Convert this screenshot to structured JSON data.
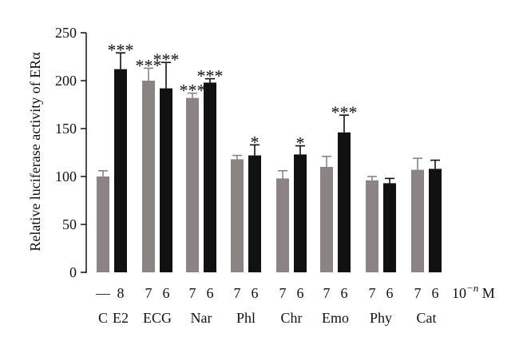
{
  "chart_data": {
    "type": "bar",
    "ylabel": "Relative luciferase activity of ERα",
    "ylim": [
      0,
      250
    ],
    "yticks": [
      0,
      50,
      100,
      150,
      200,
      250
    ],
    "unit_label": "10",
    "unit_exponent": "−n",
    "unit_suffix": " M",
    "colors": {
      "gray": "#8c8484",
      "black": "#111111"
    },
    "groups": [
      {
        "label": "C",
        "bars": [
          {
            "conc": "—",
            "value": 100,
            "err": 6,
            "color": "gray",
            "sig": ""
          }
        ]
      },
      {
        "label": "E2",
        "bars": [
          {
            "conc": "8",
            "value": 212,
            "err": 17,
            "color": "black",
            "sig": "***"
          }
        ]
      },
      {
        "label": "ECG",
        "bars": [
          {
            "conc": "7",
            "value": 200,
            "err": 13,
            "color": "gray",
            "sig": "***"
          },
          {
            "conc": "6",
            "value": 192,
            "err": 27,
            "color": "black",
            "sig": "***"
          }
        ]
      },
      {
        "label": "Nar",
        "bars": [
          {
            "conc": "7",
            "value": 182,
            "err": 5,
            "color": "gray",
            "sig": "***"
          },
          {
            "conc": "6",
            "value": 198,
            "err": 4,
            "color": "black",
            "sig": "***"
          }
        ]
      },
      {
        "label": "Phl",
        "bars": [
          {
            "conc": "7",
            "value": 118,
            "err": 4,
            "color": "gray",
            "sig": ""
          },
          {
            "conc": "6",
            "value": 122,
            "err": 11,
            "color": "black",
            "sig": "*"
          }
        ]
      },
      {
        "label": "Chr",
        "bars": [
          {
            "conc": "7",
            "value": 98,
            "err": 8,
            "color": "gray",
            "sig": ""
          },
          {
            "conc": "6",
            "value": 123,
            "err": 9,
            "color": "black",
            "sig": "*"
          }
        ]
      },
      {
        "label": "Emo",
        "bars": [
          {
            "conc": "7",
            "value": 110,
            "err": 11,
            "color": "gray",
            "sig": ""
          },
          {
            "conc": "6",
            "value": 146,
            "err": 18,
            "color": "black",
            "sig": "***"
          }
        ]
      },
      {
        "label": "Phy",
        "bars": [
          {
            "conc": "7",
            "value": 96,
            "err": 4,
            "color": "gray",
            "sig": ""
          },
          {
            "conc": "6",
            "value": 93,
            "err": 5,
            "color": "black",
            "sig": ""
          }
        ]
      },
      {
        "label": "Cat",
        "bars": [
          {
            "conc": "7",
            "value": 107,
            "err": 12,
            "color": "gray",
            "sig": ""
          },
          {
            "conc": "6",
            "value": 108,
            "err": 9,
            "color": "black",
            "sig": ""
          }
        ]
      }
    ]
  }
}
